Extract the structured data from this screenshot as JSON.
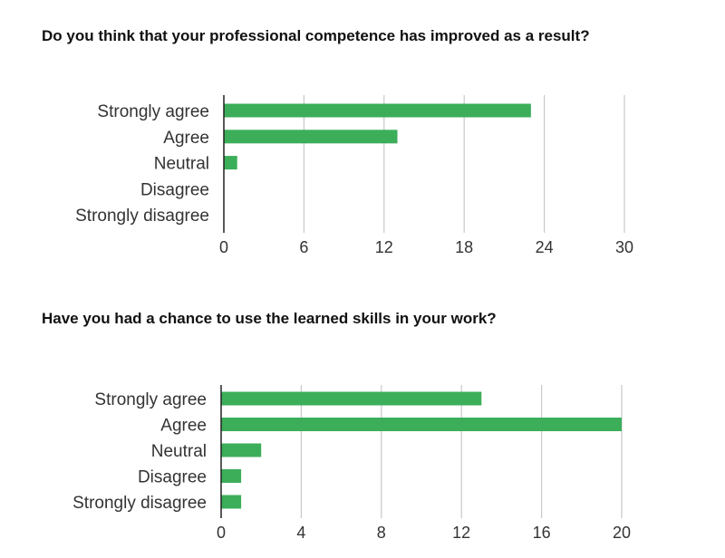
{
  "chart_data": [
    {
      "type": "bar",
      "orientation": "horizontal",
      "title": "Do you think that your professional competence has improved as a result?",
      "categories": [
        "Strongly agree",
        "Agree",
        "Neutral",
        "Disagree",
        "Strongly disagree"
      ],
      "values": [
        23,
        13,
        1,
        0,
        0
      ],
      "xlim": [
        0,
        30
      ],
      "xticks": [
        0,
        6,
        12,
        18,
        24,
        30
      ],
      "grid": true,
      "color": "#3cae5a"
    },
    {
      "type": "bar",
      "orientation": "horizontal",
      "title": "Have you had a chance to use the learned skills in your work?",
      "categories": [
        "Strongly agree",
        "Agree",
        "Neutral",
        "Disagree",
        "Strongly disagree"
      ],
      "values": [
        13,
        20,
        2,
        1,
        1
      ],
      "xlim": [
        0,
        20
      ],
      "xticks": [
        0,
        4,
        8,
        12,
        16,
        20
      ],
      "grid": true,
      "color": "#3cae5a"
    }
  ]
}
